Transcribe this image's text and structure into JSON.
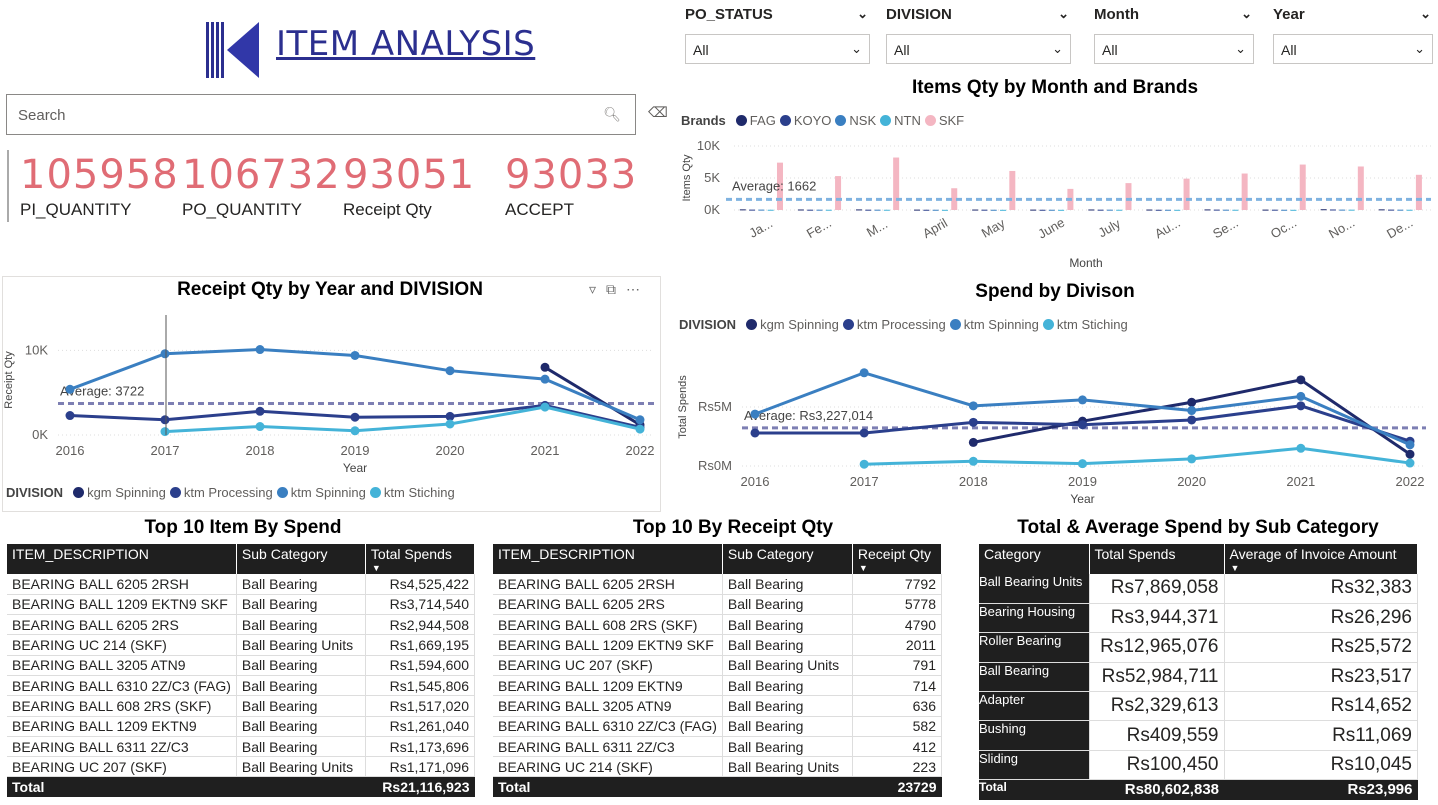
{
  "header": {
    "title": "ITEM ANALYSIS",
    "search_placeholder": "Search"
  },
  "kpis": [
    {
      "value": "105958",
      "label": "PI_QUANTITY"
    },
    {
      "value": "106732",
      "label": "PO_QUANTITY"
    },
    {
      "value": "93051",
      "label": "Receipt Qty"
    },
    {
      "value": "93033",
      "label": "ACCEPT"
    }
  ],
  "slicers": [
    {
      "label": "PO_STATUS",
      "value": "All"
    },
    {
      "label": "DIVISION",
      "value": "All"
    },
    {
      "label": "Month",
      "value": "All"
    },
    {
      "label": "Year",
      "value": "All"
    }
  ],
  "colors": {
    "kpi": "#e06c75",
    "dark_navy": "#1f2a6b",
    "navy": "#2b3f8c",
    "blue": "#3a7fc1",
    "light_blue": "#44b3d8",
    "pink": "#f4b6c2",
    "avg": "#7d7fb3"
  },
  "chart_data": [
    {
      "type": "bar",
      "title": "Items Qty by Month and Brands",
      "xlabel": "Month",
      "ylabel": "Items Qty",
      "legend_title": "Brands",
      "categories": [
        "Ja...",
        "Fe...",
        "M...",
        "April",
        "May",
        "June",
        "July",
        "Au...",
        "Se...",
        "Oc...",
        "No...",
        "De..."
      ],
      "ytick_labels": [
        "10K",
        "5K",
        "0K"
      ],
      "ylim": [
        0,
        10000
      ],
      "average_label": "Average: 1662",
      "average": 1662,
      "series": [
        {
          "name": "FAG",
          "values": [
            100,
            80,
            90,
            60,
            70,
            60,
            80,
            70,
            90,
            60,
            120,
            100
          ]
        },
        {
          "name": "KOYO",
          "values": [
            60,
            50,
            50,
            40,
            50,
            40,
            50,
            40,
            60,
            50,
            80,
            60
          ]
        },
        {
          "name": "NSK",
          "values": [
            60,
            50,
            50,
            40,
            40,
            40,
            50,
            40,
            50,
            40,
            60,
            50
          ]
        },
        {
          "name": "NTN",
          "values": [
            40,
            40,
            40,
            30,
            30,
            30,
            40,
            30,
            40,
            30,
            50,
            40
          ]
        },
        {
          "name": "SKF",
          "values": [
            7400,
            5300,
            8200,
            3400,
            6100,
            3300,
            4200,
            4900,
            5700,
            7100,
            6800,
            5500
          ]
        }
      ]
    },
    {
      "type": "line",
      "title": "Receipt Qty by Year and DIVISION",
      "xlabel": "Year",
      "ylabel": "Receipt Qty",
      "legend_title": "DIVISION",
      "x": [
        2016,
        2017,
        2018,
        2019,
        2020,
        2021,
        2022
      ],
      "ytick_labels": [
        "10K",
        "0K"
      ],
      "ylim": [
        0,
        13000
      ],
      "average_label": "Average: 3722",
      "average": 3722,
      "series": [
        {
          "name": "kgm Spinning",
          "values": [
            null,
            null,
            null,
            null,
            null,
            8000,
            1200
          ]
        },
        {
          "name": "ktm Processing",
          "values": [
            2300,
            1800,
            2800,
            2100,
            2200,
            3500,
            900
          ]
        },
        {
          "name": "ktm Spinning",
          "values": [
            5400,
            9600,
            10100,
            9400,
            7600,
            6600,
            1800
          ]
        },
        {
          "name": "ktm Stiching",
          "values": [
            null,
            400,
            1000,
            500,
            1300,
            3300,
            700
          ]
        }
      ]
    },
    {
      "type": "line",
      "title": "Spend by Divison",
      "xlabel": "Year",
      "ylabel": "Total Spends",
      "legend_title": "DIVISION",
      "x": [
        2016,
        2017,
        2018,
        2019,
        2020,
        2021,
        2022
      ],
      "ytick_labels": [
        "Rs5M",
        "Rs0M"
      ],
      "ylim": [
        0,
        10000000
      ],
      "average_label": "Average: Rs3,227,014",
      "average": 3227014,
      "series": [
        {
          "name": "kgm Spinning",
          "values": [
            null,
            null,
            2000000,
            3800000,
            5400000,
            7300000,
            1000000
          ]
        },
        {
          "name": "ktm Processing",
          "values": [
            2800000,
            2800000,
            3700000,
            3500000,
            3900000,
            5100000,
            2100000
          ]
        },
        {
          "name": "ktm Spinning",
          "values": [
            4400000,
            7900000,
            5100000,
            5600000,
            4700000,
            5900000,
            1800000
          ]
        },
        {
          "name": "ktm Stiching",
          "values": [
            null,
            150000,
            400000,
            200000,
            600000,
            1500000,
            250000
          ]
        }
      ]
    }
  ],
  "table1": {
    "title": "Top 10 Item By Spend",
    "headers": [
      "ITEM_DESCRIPTION",
      "Sub Category",
      "Total Spends"
    ],
    "rows": [
      [
        "BEARING BALL 6205 2RSH",
        "Ball Bearing",
        "Rs4,525,422"
      ],
      [
        "BEARING BALL 1209 EKTN9 SKF",
        "Ball Bearing",
        "Rs3,714,540"
      ],
      [
        "BEARING BALL 6205 2RS",
        "Ball Bearing",
        "Rs2,944,508"
      ],
      [
        "BEARING UC 214 (SKF)",
        "Ball Bearing Units",
        "Rs1,669,195"
      ],
      [
        "BEARING BALL 3205 ATN9",
        "Ball Bearing",
        "Rs1,594,600"
      ],
      [
        "BEARING BALL 6310 2Z/C3 (FAG)",
        "Ball Bearing",
        "Rs1,545,806"
      ],
      [
        "BEARING BALL 608 2RS (SKF)",
        "Ball Bearing",
        "Rs1,517,020"
      ],
      [
        "BEARING BALL 1209 EKTN9",
        "Ball Bearing",
        "Rs1,261,040"
      ],
      [
        "BEARING BALL 6311 2Z/C3",
        "Ball Bearing",
        "Rs1,173,696"
      ],
      [
        "BEARING UC 207 (SKF)",
        "Ball Bearing Units",
        "Rs1,171,096"
      ]
    ],
    "total_label": "Total",
    "total": "Rs21,116,923"
  },
  "table2": {
    "title": "Top 10 By Receipt Qty",
    "headers": [
      "ITEM_DESCRIPTION",
      "Sub Category",
      "Receipt Qty"
    ],
    "rows": [
      [
        "BEARING BALL 6205 2RSH",
        "Ball Bearing",
        "7792"
      ],
      [
        "BEARING BALL 6205 2RS",
        "Ball Bearing",
        "5778"
      ],
      [
        "BEARING BALL 608 2RS (SKF)",
        "Ball Bearing",
        "4790"
      ],
      [
        "BEARING BALL 1209 EKTN9 SKF",
        "Ball Bearing",
        "2011"
      ],
      [
        "BEARING UC 207 (SKF)",
        "Ball Bearing Units",
        "791"
      ],
      [
        "BEARING BALL 1209 EKTN9",
        "Ball Bearing",
        "714"
      ],
      [
        "BEARING BALL 3205 ATN9",
        "Ball Bearing",
        "636"
      ],
      [
        "BEARING BALL 6310 2Z/C3 (FAG)",
        "Ball Bearing",
        "582"
      ],
      [
        "BEARING BALL 6311 2Z/C3",
        "Ball Bearing",
        "412"
      ],
      [
        "BEARING UC 214 (SKF)",
        "Ball Bearing Units",
        "223"
      ]
    ],
    "total_label": "Total",
    "total": "23729"
  },
  "table3": {
    "title": "Total & Average Spend by Sub Category",
    "headers": [
      "Category",
      "Total Spends",
      "Average of Invoice Amount"
    ],
    "rows": [
      [
        "Ball Bearing Units",
        "Rs7,869,058",
        "Rs32,383"
      ],
      [
        "Bearing Housing",
        "Rs3,944,371",
        "Rs26,296"
      ],
      [
        "Roller Bearing",
        "Rs12,965,076",
        "Rs25,572"
      ],
      [
        "Ball Bearing",
        "Rs52,984,711",
        "Rs23,517"
      ],
      [
        "Adapter",
        "Rs2,329,613",
        "Rs14,652"
      ],
      [
        "Bushing",
        "Rs409,559",
        "Rs11,069"
      ],
      [
        "Sliding",
        "Rs100,450",
        "Rs10,045"
      ]
    ],
    "total_label": "Total",
    "total": "Rs80,602,838",
    "avg_total": "Rs23,996"
  }
}
